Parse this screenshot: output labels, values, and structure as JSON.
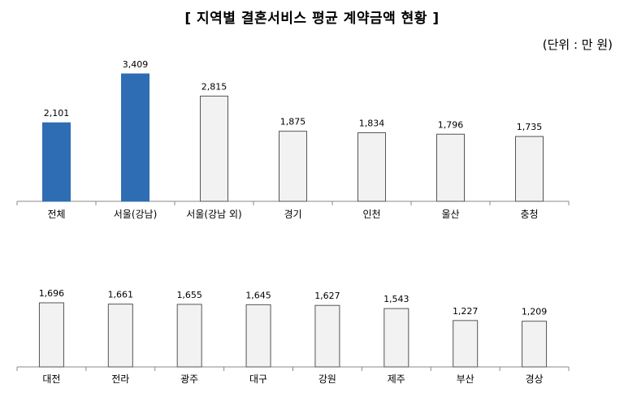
{
  "title": "[ 지역별 결혼서비스 평균 계약금액 현황 ]",
  "unit": "(단위 : 만 원)",
  "colors": {
    "highlight": "#2e6db3",
    "normal": "#f2f2f2",
    "stroke": "#555555"
  },
  "chart_data": [
    {
      "type": "bar",
      "categories": [
        "전체",
        "서울(강남)",
        "서울(강남 외)",
        "경기",
        "인천",
        "울산",
        "충청"
      ],
      "values": [
        2101,
        3409,
        2815,
        1875,
        1834,
        1796,
        1735
      ],
      "value_labels": [
        "2,101",
        "3,409",
        "2,815",
        "1,875",
        "1,834",
        "1,796",
        "1,735"
      ],
      "highlighted": [
        "전체",
        "서울(강남)"
      ],
      "ylim": [
        0,
        3409
      ]
    },
    {
      "type": "bar",
      "categories": [
        "대전",
        "전라",
        "광주",
        "대구",
        "강원",
        "제주",
        "부산",
        "경상"
      ],
      "values": [
        1696,
        1661,
        1655,
        1645,
        1627,
        1543,
        1227,
        1209
      ],
      "value_labels": [
        "1,696",
        "1,661",
        "1,655",
        "1,645",
        "1,627",
        "1,543",
        "1,227",
        "1,209"
      ],
      "highlighted": [],
      "ylim": [
        0,
        3409
      ]
    }
  ]
}
